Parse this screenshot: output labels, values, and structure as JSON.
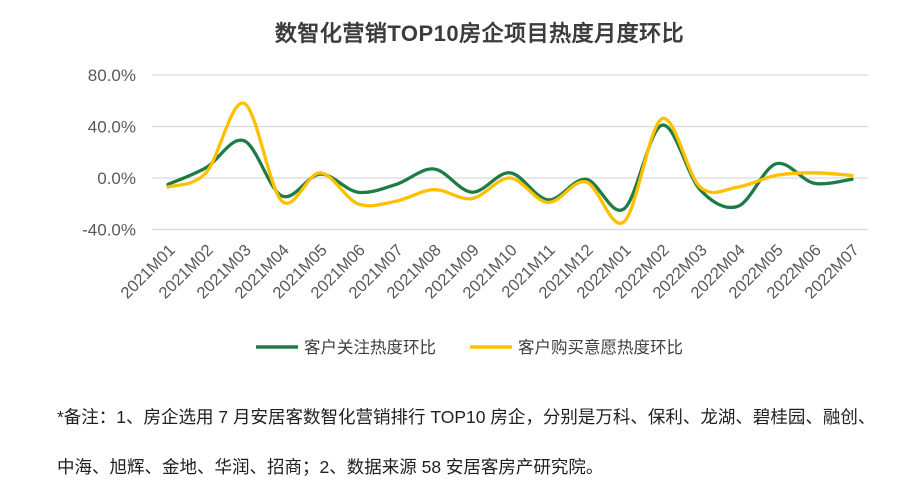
{
  "title": "数智化营销TOP10房企项目热度月度环比",
  "colors": {
    "green": "#1E7B46",
    "yellow": "#FFC000",
    "grid": "#D9D9D9",
    "axis_text": "#595959",
    "legend_text": "#3f3f3f",
    "title_text": "#3c3c3c",
    "note_text": "#1f1f1f",
    "background": "#ffffff"
  },
  "chart_data": {
    "type": "line",
    "smooth": true,
    "grid": true,
    "legend_position": "bottom",
    "title": "数智化营销TOP10房企项目热度月度环比",
    "xlabel": "",
    "ylabel": "",
    "ylim": [
      -55,
      95
    ],
    "y_ticks": [
      {
        "value": 80,
        "label": "80.0%"
      },
      {
        "value": 40,
        "label": "40.0%"
      },
      {
        "value": 0,
        "label": "0.0%"
      },
      {
        "value": -40,
        "label": "-40.0%"
      }
    ],
    "categories": [
      "2021M01",
      "2021M02",
      "2021M03",
      "2021M04",
      "2021M05",
      "2021M06",
      "2021M07",
      "2021M08",
      "2021M09",
      "2021M10",
      "2021M11",
      "2021M12",
      "2022M01",
      "2022M02",
      "2022M03",
      "2022M04",
      "2022M05",
      "2022M06",
      "2022M07"
    ],
    "series": [
      {
        "name": "客户关注热度环比",
        "color": "#1E7B46",
        "values": [
          -5,
          8,
          29,
          -14,
          3,
          -11,
          -5,
          7,
          -11,
          4,
          -17,
          -1,
          -24,
          41,
          -9,
          -22,
          11,
          -4,
          -1
        ]
      },
      {
        "name": "客户购买意愿热度环比",
        "color": "#FFC000",
        "values": [
          -7,
          4,
          58,
          -18,
          4,
          -20,
          -18,
          -9,
          -16,
          0,
          -19,
          -3,
          -34,
          46,
          -7,
          -7,
          2,
          4,
          2
        ]
      }
    ]
  },
  "legend": {
    "item1": "客户关注热度环比",
    "item2": "客户购买意愿热度环比"
  },
  "note": {
    "line1": "*备注：1、房企选用 7 月安居客数智化营销排行 TOP10 房企，分别是万科、保利、龙湖、碧桂园、融创、",
    "line2": "中海、旭辉、金地、华润、招商；2、数据来源 58 安居客房产研究院。"
  }
}
